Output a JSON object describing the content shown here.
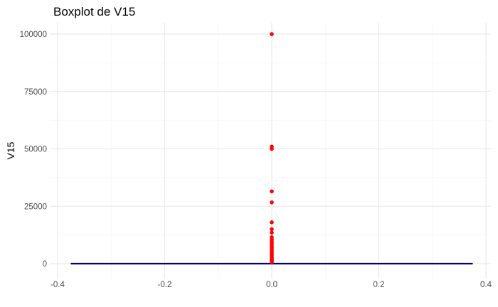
{
  "chart_data": {
    "type": "boxplot",
    "title": "Boxplot de V15",
    "xlabel": "",
    "ylabel": "V15",
    "xlim": [
      -0.4,
      0.4
    ],
    "ylim": [
      0,
      100000
    ],
    "x_ticks": [
      -0.4,
      -0.2,
      0.0,
      0.2,
      0.4
    ],
    "x_tick_labels": [
      "-0.4",
      "-0.2",
      "0.0",
      "0.2",
      "0.4"
    ],
    "y_ticks": [
      0,
      25000,
      50000,
      75000,
      100000
    ],
    "y_tick_labels": [
      "0",
      "25000",
      "50000",
      "75000",
      "100000"
    ],
    "grid": true,
    "box": {
      "x": 0,
      "x_extent": [
        -0.375,
        0.375
      ],
      "min": 0,
      "q1": 0,
      "median": 0,
      "q3": 0,
      "max": 0,
      "color": "#00008b"
    },
    "outliers": {
      "x": 0,
      "color": "#ff0000",
      "values": [
        100000,
        51000,
        50000,
        31500,
        26700,
        18000,
        15000,
        13500,
        11500,
        10500,
        9800,
        9000,
        8200,
        7500,
        6800,
        6000,
        5300,
        4600,
        4000,
        3400,
        2800,
        2300,
        1800,
        1400,
        1000,
        700
      ]
    }
  }
}
